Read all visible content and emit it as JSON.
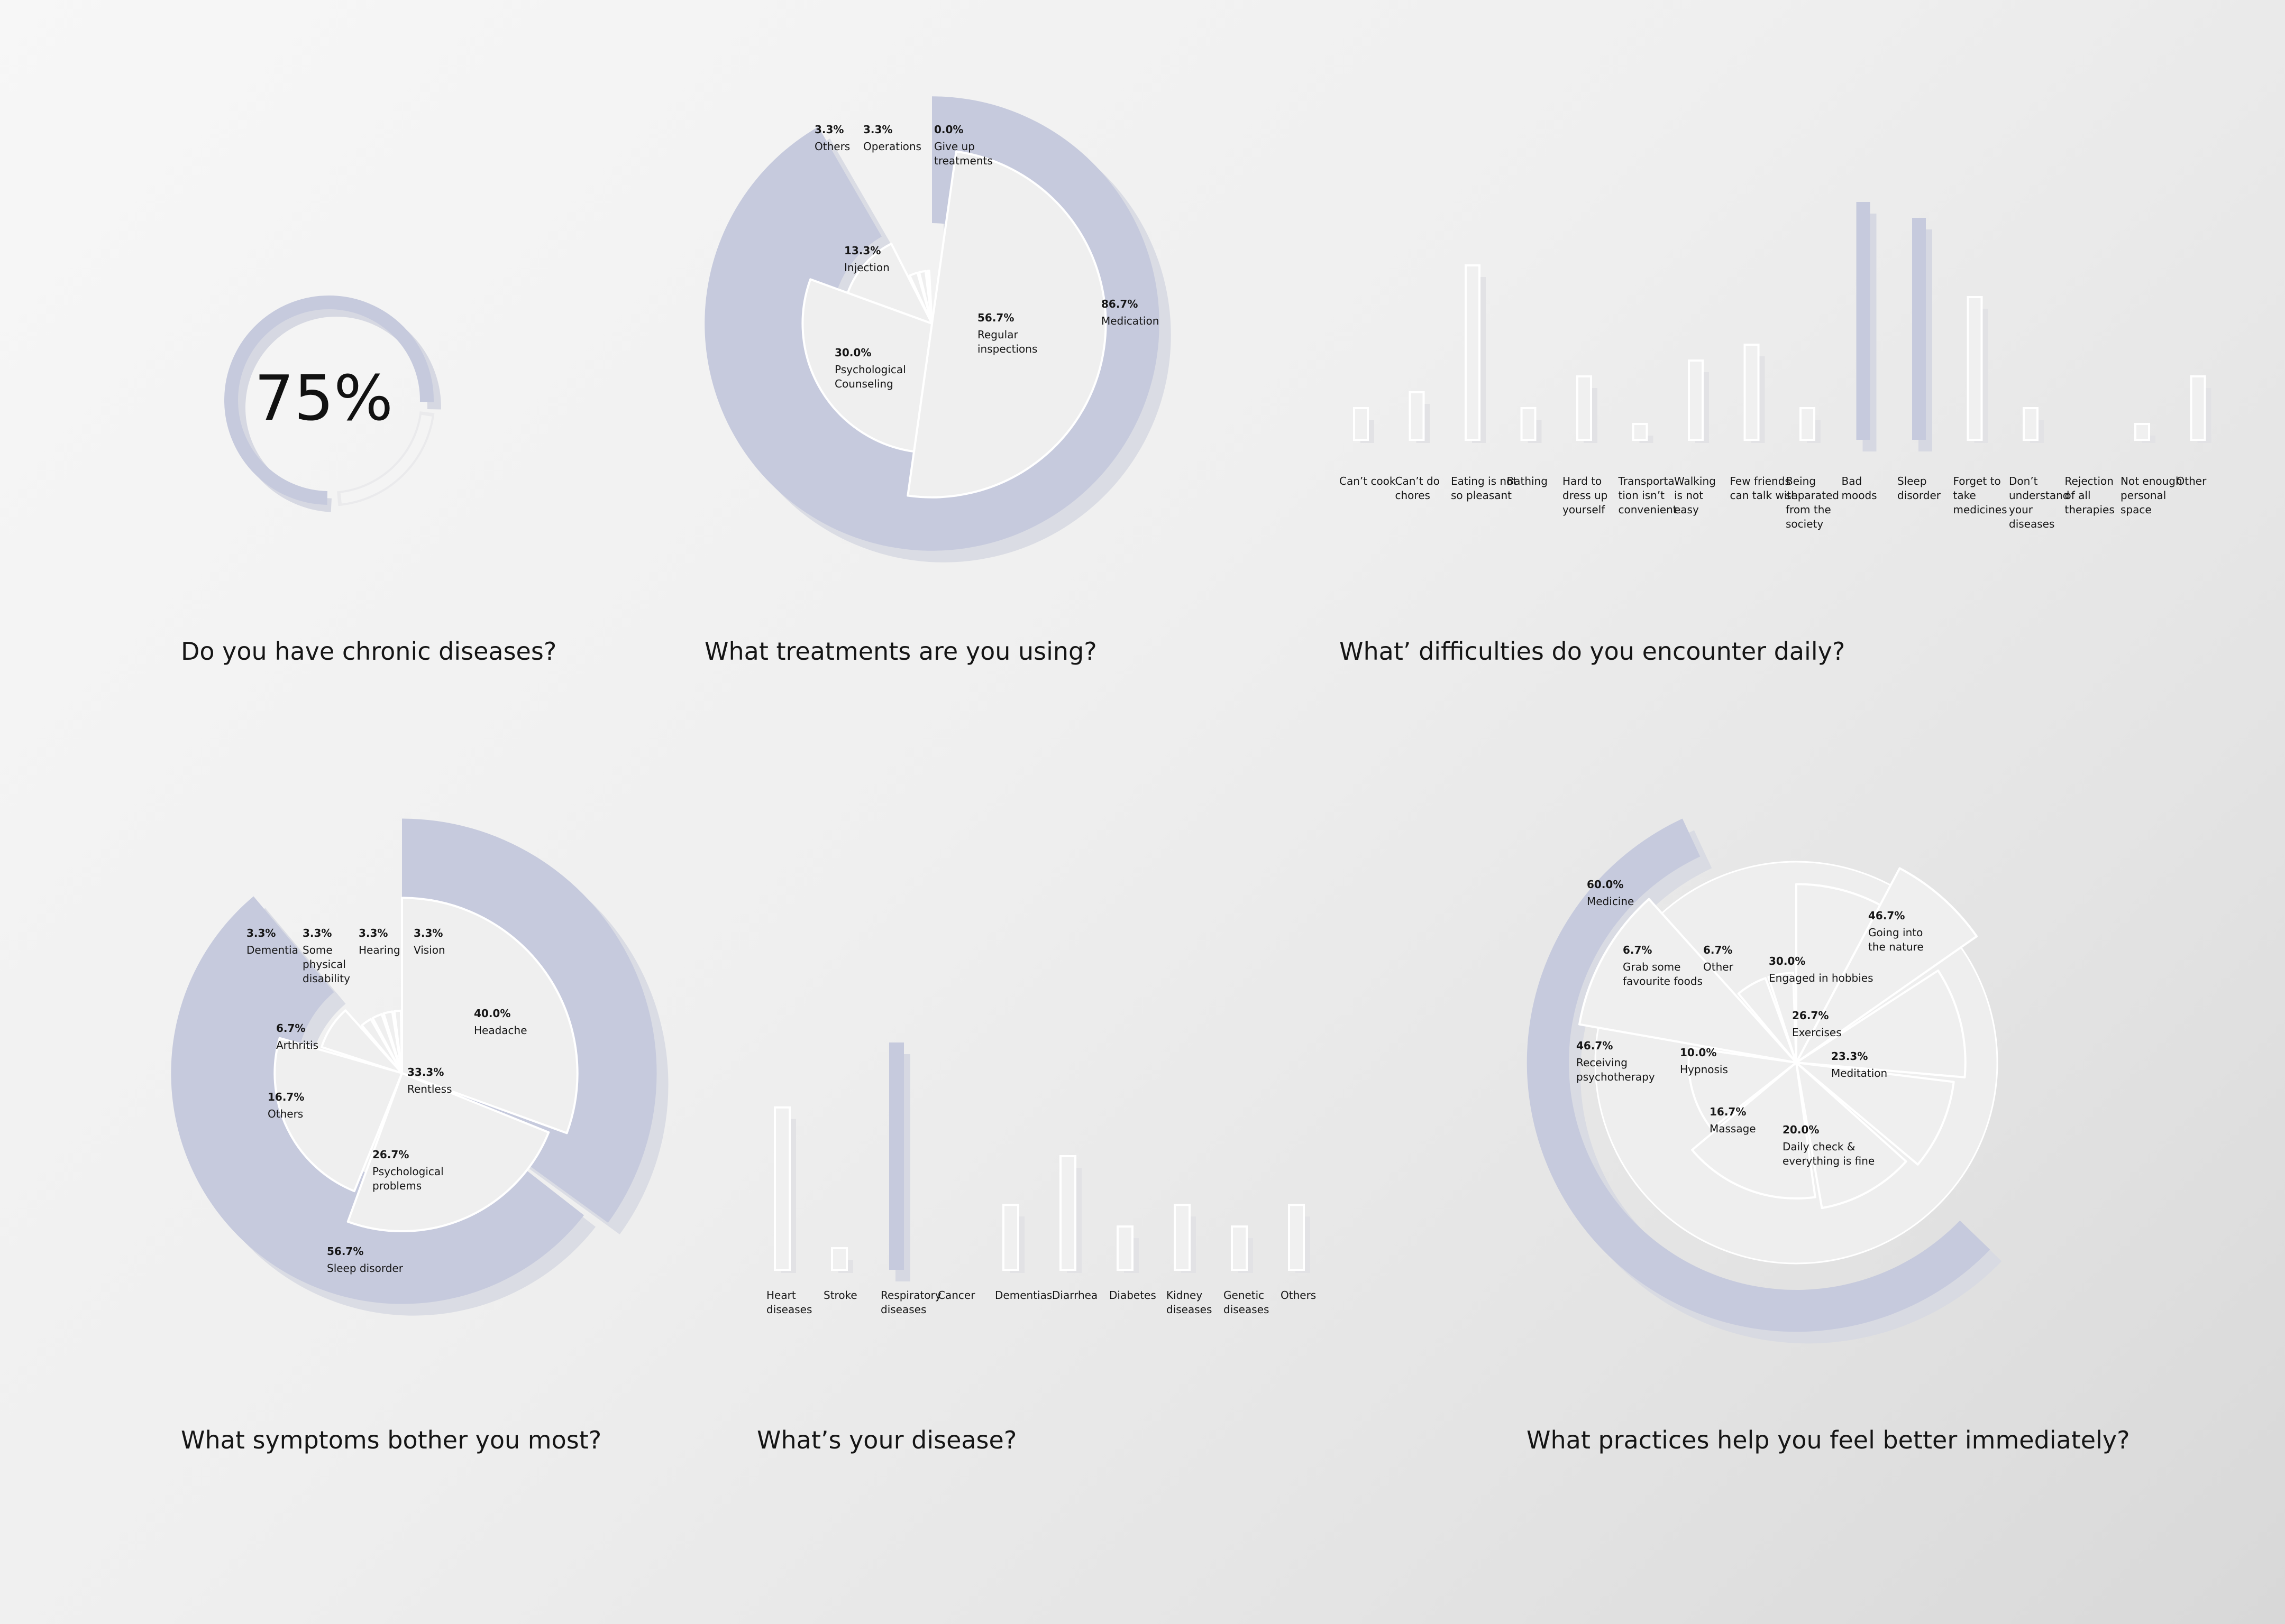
{
  "colors": {
    "accent": "#c6cadd",
    "accent_shadow": "#d6d8e2",
    "ring_light": "#eaeaec",
    "wedge_fill": "#efefef",
    "wedge_stroke": "#ffffff",
    "text": "#151515"
  },
  "chart_data": [
    {
      "id": "chronic",
      "type": "pie",
      "title": "Do you have chronic diseases?",
      "center_label": "75%",
      "value": 75,
      "unit": "%"
    },
    {
      "id": "treatments",
      "type": "pie",
      "title": "What treatments are you using?",
      "series": [
        {
          "label": "Medication",
          "value": 86.7,
          "pct": "86.7%",
          "style": "band"
        },
        {
          "label": "Regular inspections",
          "value": 56.7,
          "pct": "56.7%",
          "lines": [
            "Regular",
            "inspections"
          ]
        },
        {
          "label": "Psychological Counseling",
          "value": 30.0,
          "pct": "30.0%",
          "lines": [
            "Psychological",
            "Counseling"
          ]
        },
        {
          "label": "Injection",
          "value": 13.3,
          "pct": "13.3%",
          "lines": [
            "Injection"
          ]
        },
        {
          "label": "Others",
          "value": 3.3,
          "pct": "3.3%",
          "lines": [
            "Others"
          ]
        },
        {
          "label": "Operations",
          "value": 3.3,
          "pct": "3.3%",
          "lines": [
            "Operations"
          ]
        },
        {
          "label": "Give up treatments",
          "value": 0.0,
          "pct": "0.0%",
          "lines": [
            "Give up",
            "treatments"
          ]
        }
      ]
    },
    {
      "id": "difficulties",
      "type": "bar",
      "title": "What’ difficulties do you encounter daily?",
      "categories": [
        [
          "Can’t cook"
        ],
        [
          "Can’t do",
          "chores"
        ],
        [
          "Eating is not",
          "so pleasant"
        ],
        [
          "Bathing"
        ],
        [
          "Hard to",
          "dress up",
          "yourself"
        ],
        [
          "Transporta",
          "tion isn’t",
          "convenient"
        ],
        [
          "Walking",
          "is not",
          "easy"
        ],
        [
          "Few friends",
          "can talk with"
        ],
        [
          "Being",
          "separated",
          "from the",
          "society"
        ],
        [
          "Bad",
          "moods"
        ],
        [
          "Sleep",
          "disorder"
        ],
        [
          "Forget to",
          "take",
          "medicines"
        ],
        [
          "Don’t",
          "understand",
          "your",
          "diseases"
        ],
        [
          "Rejection",
          "of all",
          "therapies"
        ],
        [
          "Not enough",
          "personal",
          "space"
        ],
        [
          "Other"
        ]
      ],
      "values": [
        6,
        9,
        33,
        6,
        12,
        3,
        15,
        18,
        6,
        45,
        42,
        27,
        6,
        0,
        3,
        12
      ],
      "highlight": [
        false,
        false,
        false,
        false,
        false,
        false,
        false,
        false,
        false,
        true,
        true,
        false,
        false,
        false,
        false,
        false
      ]
    },
    {
      "id": "symptoms",
      "type": "pie",
      "title": "What symptoms bother you most?",
      "series": [
        {
          "label": "Sleep disorder",
          "value": 56.7,
          "pct": "56.7%",
          "style": "band"
        },
        {
          "label": "Headache",
          "value": 40.0,
          "pct": "40.0%",
          "style": "band"
        },
        {
          "label": "Rentless",
          "value": 33.3,
          "pct": "33.3%",
          "lines": [
            "Rentless"
          ]
        },
        {
          "label": "Psychological problems",
          "value": 26.7,
          "pct": "26.7%",
          "lines": [
            "Psychological",
            "problems"
          ]
        },
        {
          "label": "Others",
          "value": 16.7,
          "pct": "16.7%",
          "lines": [
            "Others"
          ]
        },
        {
          "label": "Arthritis",
          "value": 6.7,
          "pct": "6.7%",
          "lines": [
            "Arthritis"
          ]
        },
        {
          "label": "Dementia",
          "value": 3.3,
          "pct": "3.3%",
          "lines": [
            "Dementia"
          ]
        },
        {
          "label": "Some physical disability",
          "value": 3.3,
          "pct": "3.3%",
          "lines": [
            "Some",
            "physical",
            "disability"
          ]
        },
        {
          "label": "Hearing",
          "value": 3.3,
          "pct": "3.3%",
          "lines": [
            "Hearing"
          ]
        },
        {
          "label": "Vision",
          "value": 3.3,
          "pct": "3.3%",
          "lines": [
            "Vision"
          ]
        }
      ]
    },
    {
      "id": "disease",
      "type": "bar",
      "title": "What’s your disease?",
      "categories": [
        [
          "Heart",
          "diseases"
        ],
        [
          "Stroke"
        ],
        [
          "Respiratory",
          "diseases"
        ],
        [
          "Cancer"
        ],
        [
          "Dementias"
        ],
        [
          "Diarrhea"
        ],
        [
          "Diabetes"
        ],
        [
          "Kidney",
          "diseases"
        ],
        [
          "Genetic",
          "diseases"
        ],
        [
          "Others"
        ]
      ],
      "values": [
        30,
        4,
        42,
        0,
        12,
        21,
        8,
        12,
        8,
        12
      ],
      "highlight": [
        false,
        false,
        true,
        false,
        false,
        false,
        false,
        false,
        false,
        false
      ]
    },
    {
      "id": "practices",
      "type": "pie",
      "title": "What practices help you feel better immediately?",
      "series": [
        {
          "label": "Medicine",
          "value": 60.0,
          "pct": "60.0%",
          "style": "band"
        },
        {
          "label": "Receiving psychotherapy",
          "value": 46.7,
          "pct": "46.7%",
          "lines": [
            "Receiving",
            "psychotherapy"
          ]
        },
        {
          "label": "Going into the nature",
          "value": 46.7,
          "pct": "46.7%",
          "lines": [
            "Going into",
            "the nature"
          ]
        },
        {
          "label": "Engaged in hobbies",
          "value": 30.0,
          "pct": "30.0%",
          "lines": [
            "Engaged in hobbies"
          ]
        },
        {
          "label": "Exercises",
          "value": 26.7,
          "pct": "26.7%",
          "lines": [
            "Exercises"
          ]
        },
        {
          "label": "Meditation",
          "value": 23.3,
          "pct": "23.3%",
          "lines": [
            "Meditation"
          ]
        },
        {
          "label": "Daily check & everything is fine",
          "value": 20.0,
          "pct": "20.0%",
          "lines": [
            "Daily check &",
            "everything is fine"
          ]
        },
        {
          "label": "Massage",
          "value": 16.7,
          "pct": "16.7%",
          "lines": [
            "Massage"
          ]
        },
        {
          "label": "Hypnosis",
          "value": 10.0,
          "pct": "10.0%",
          "lines": [
            "Hypnosis"
          ]
        },
        {
          "label": "Grab some favourite foods",
          "value": 6.7,
          "pct": "6.7%",
          "lines": [
            "Grab some",
            "favourite foods"
          ]
        },
        {
          "label": "Other",
          "value": 6.7,
          "pct": "6.7%",
          "lines": [
            "Other"
          ]
        }
      ]
    }
  ]
}
